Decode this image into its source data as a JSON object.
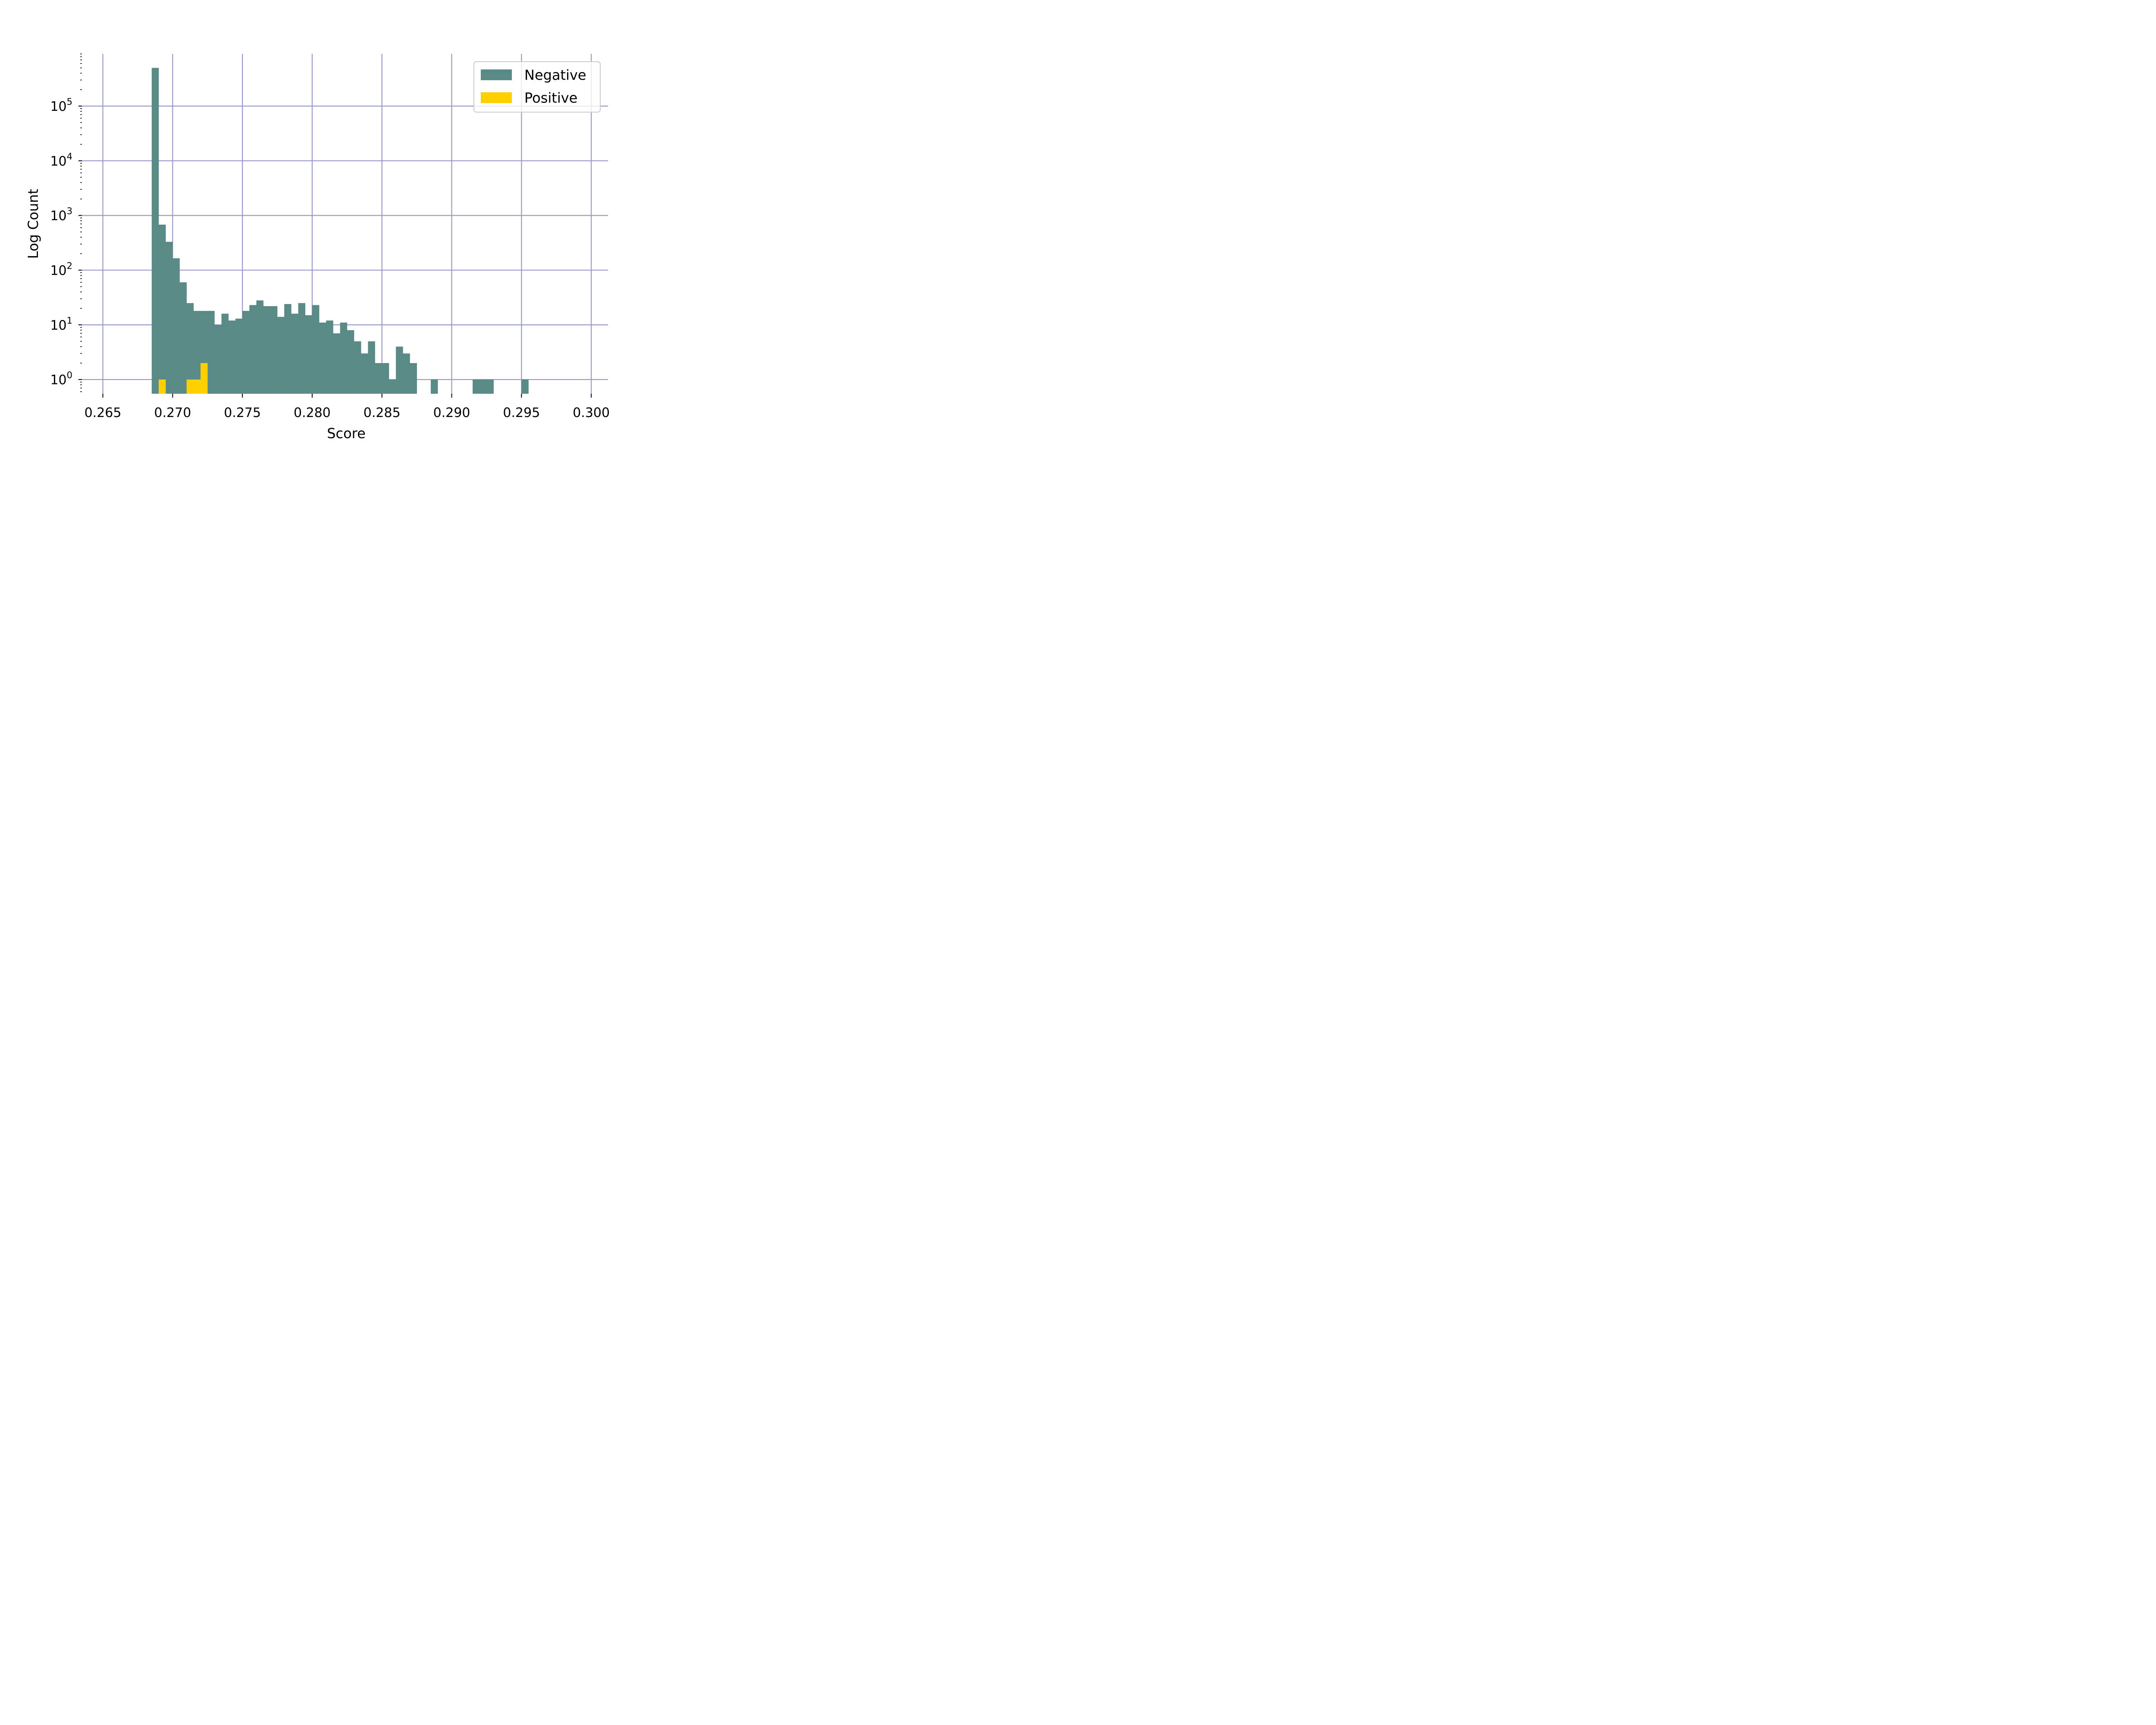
{
  "chart_data": {
    "type": "bar",
    "title": "",
    "xlabel": "Score",
    "ylabel": "Log Count",
    "yscale": "log",
    "xlim": [
      0.2635,
      0.3012
    ],
    "ylim": [
      0.55,
      900000
    ],
    "grid": true,
    "legend_position": "top-right",
    "bin_width": 0.0005,
    "x_tick_labels": [
      "0.265",
      "0.270",
      "0.275",
      "0.280",
      "0.285",
      "0.290",
      "0.295",
      "0.300"
    ],
    "y_tick_labels": [
      {
        "base": "10",
        "exp": "0"
      },
      {
        "base": "10",
        "exp": "1"
      },
      {
        "base": "10",
        "exp": "2"
      },
      {
        "base": "10",
        "exp": "3"
      },
      {
        "base": "10",
        "exp": "4"
      },
      {
        "base": "10",
        "exp": "5"
      }
    ],
    "series": [
      {
        "name": "Negative",
        "color": "#5a8a86",
        "bins": [
          [
            0.2685,
            500000
          ],
          [
            0.269,
            680
          ],
          [
            0.2695,
            330
          ],
          [
            0.27,
            165
          ],
          [
            0.2705,
            60
          ],
          [
            0.271,
            25
          ],
          [
            0.2715,
            18
          ],
          [
            0.272,
            18
          ],
          [
            0.2725,
            18
          ],
          [
            0.273,
            10
          ],
          [
            0.2735,
            16
          ],
          [
            0.274,
            12
          ],
          [
            0.2745,
            13
          ],
          [
            0.275,
            18
          ],
          [
            0.2755,
            23
          ],
          [
            0.276,
            28
          ],
          [
            0.2765,
            22
          ],
          [
            0.277,
            22
          ],
          [
            0.2775,
            14
          ],
          [
            0.278,
            24
          ],
          [
            0.2785,
            16
          ],
          [
            0.279,
            25
          ],
          [
            0.2795,
            15
          ],
          [
            0.28,
            23
          ],
          [
            0.2805,
            11
          ],
          [
            0.281,
            12
          ],
          [
            0.2815,
            7
          ],
          [
            0.282,
            11
          ],
          [
            0.2825,
            8
          ],
          [
            0.283,
            5
          ],
          [
            0.2835,
            3
          ],
          [
            0.284,
            5
          ],
          [
            0.2845,
            2
          ],
          [
            0.285,
            2
          ],
          [
            0.2855,
            1
          ],
          [
            0.286,
            4
          ],
          [
            0.2865,
            3
          ],
          [
            0.287,
            2
          ],
          [
            0.2885,
            1
          ],
          [
            0.2915,
            1
          ],
          [
            0.292,
            1
          ],
          [
            0.2925,
            1
          ],
          [
            0.295,
            1
          ]
        ]
      },
      {
        "name": "Positive",
        "color": "#ffd000",
        "bins": [
          [
            0.269,
            1
          ],
          [
            0.271,
            1
          ],
          [
            0.2715,
            1
          ],
          [
            0.272,
            2
          ]
        ]
      }
    ],
    "grid_color": "#9a98c8"
  }
}
